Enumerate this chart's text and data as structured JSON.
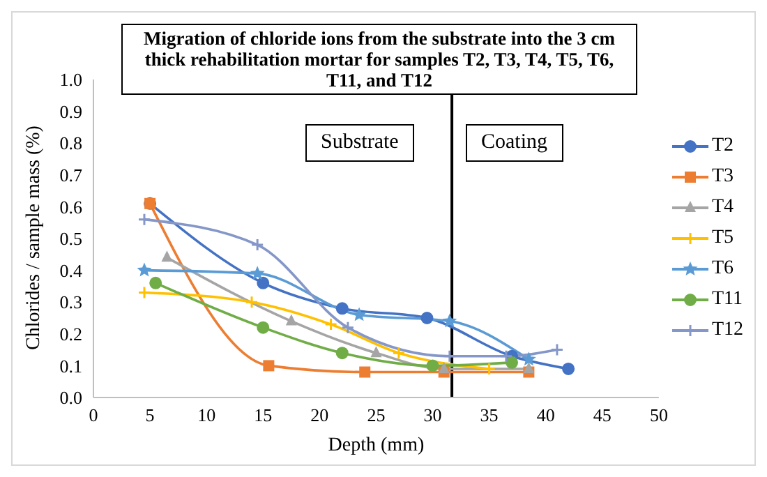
{
  "chart_data": {
    "type": "line",
    "title": "Migration of chloride ions from the substrate into the 3 cm thick rehabilitation mortar for samples T2, T3, T4, T5, T6, T11, and T12",
    "xlabel": "Depth (mm)",
    "ylabel": "Chlorides / sample mass (%)",
    "xlim": [
      0,
      50
    ],
    "xticks": [
      0,
      5,
      10,
      15,
      20,
      25,
      30,
      35,
      40,
      45,
      50
    ],
    "ylim": [
      0,
      1
    ],
    "yticks": [
      {
        "value": 0,
        "label": "0.0"
      },
      {
        "value": 0.1,
        "label": "0.1"
      },
      {
        "value": 0.2,
        "label": "0.2"
      },
      {
        "value": 0.3,
        "label": "0.3"
      },
      {
        "value": 0.4,
        "label": "0.4"
      },
      {
        "value": 0.5,
        "label": "0.5"
      },
      {
        "value": 0.6,
        "label": "0.6"
      },
      {
        "value": 0.7,
        "label": "0.7"
      },
      {
        "value": 0.8,
        "label": "0.8"
      },
      {
        "value": 0.9,
        "label": "0.9"
      },
      {
        "value": 1,
        "label": "1.0"
      }
    ],
    "grid": false,
    "legend": "right",
    "line_style": "solid",
    "annotations": [
      "Substrate",
      "Coating"
    ],
    "ref_lines": [
      {
        "axis": "x",
        "value": 31.7,
        "color": "#000000"
      }
    ],
    "series": [
      {
        "name": "T2",
        "color": "#4472c4",
        "marker": "circle",
        "x": [
          5,
          15,
          22,
          29.5,
          37,
          42
        ],
        "values": [
          0.61,
          0.36,
          0.28,
          0.25,
          0.13,
          0.09
        ]
      },
      {
        "name": "T3",
        "color": "#ed7d31",
        "marker": "square",
        "x": [
          5,
          15.5,
          24,
          31,
          38.5
        ],
        "values": [
          0.61,
          0.1,
          0.08,
          0.08,
          0.08
        ]
      },
      {
        "name": "T4",
        "color": "#a5a5a5",
        "marker": "triangle",
        "x": [
          6.5,
          17.5,
          25,
          31,
          38.5
        ],
        "values": [
          0.44,
          0.24,
          0.14,
          0.09,
          0.09
        ]
      },
      {
        "name": "T5",
        "color": "#ffc000",
        "marker": "cross",
        "x": [
          4.5,
          14,
          21,
          27,
          35
        ],
        "values": [
          0.33,
          0.3,
          0.23,
          0.14,
          0.09
        ]
      },
      {
        "name": "T6",
        "color": "#5b9bd5",
        "marker": "star",
        "x": [
          4.5,
          14.5,
          23.5,
          31.5,
          38.5
        ],
        "values": [
          0.4,
          0.39,
          0.26,
          0.24,
          0.12
        ]
      },
      {
        "name": "T11",
        "color": "#70ad47",
        "marker": "circle",
        "x": [
          5.5,
          15,
          22,
          30,
          37
        ],
        "values": [
          0.36,
          0.22,
          0.14,
          0.1,
          0.11
        ]
      },
      {
        "name": "T12",
        "color": "#8497c8",
        "marker": "cross",
        "x": [
          4.5,
          14.5,
          22.5,
          31.5,
          36.5,
          41
        ],
        "values": [
          0.56,
          0.48,
          0.22,
          0.13,
          0.13,
          0.15
        ]
      }
    ]
  }
}
